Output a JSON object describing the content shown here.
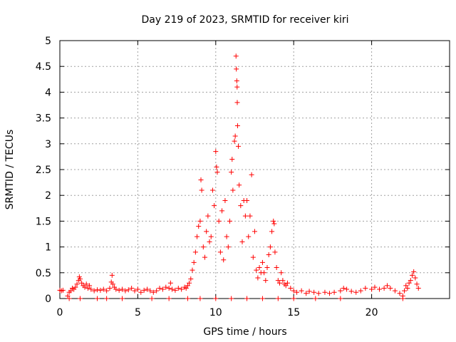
{
  "chart_data": {
    "type": "scatter",
    "title": "Day 219 of 2023, SRMTID for receiver kiri",
    "xlabel": "GPS time / hours",
    "ylabel": "SRMTID / TECUs",
    "xlim": [
      0,
      25
    ],
    "ylim": [
      0,
      5
    ],
    "xticks": [
      0,
      5,
      10,
      15,
      20
    ],
    "yticks": [
      0,
      0.5,
      1,
      1.5,
      2,
      2.5,
      3,
      3.5,
      4,
      4.5,
      5
    ],
    "ytick_labels": [
      "0",
      "0.5",
      "1",
      "1.5",
      "2",
      "2.5",
      "3",
      "3.5",
      "4",
      "4.5",
      "5"
    ],
    "grid": true,
    "legend": null,
    "marker": "+",
    "series_color": "#ff0000",
    "series": [
      {
        "name": "SRMTID",
        "points": [
          [
            0.0,
            0.16
          ],
          [
            0.1,
            0.15
          ],
          [
            0.2,
            0.16
          ],
          [
            0.5,
            0.05
          ],
          [
            0.6,
            0.12
          ],
          [
            0.7,
            0.15
          ],
          [
            0.8,
            0.2
          ],
          [
            0.9,
            0.18
          ],
          [
            1.0,
            0.22
          ],
          [
            1.1,
            0.28
          ],
          [
            1.2,
            0.35
          ],
          [
            1.25,
            0.42
          ],
          [
            1.3,
            0.38
          ],
          [
            1.4,
            0.3
          ],
          [
            1.5,
            0.25
          ],
          [
            1.6,
            0.22
          ],
          [
            1.7,
            0.28
          ],
          [
            1.8,
            0.2
          ],
          [
            1.9,
            0.25
          ],
          [
            2.0,
            0.18
          ],
          [
            2.2,
            0.15
          ],
          [
            2.4,
            0.17
          ],
          [
            2.6,
            0.16
          ],
          [
            2.8,
            0.18
          ],
          [
            3.0,
            0.15
          ],
          [
            3.2,
            0.2
          ],
          [
            3.3,
            0.32
          ],
          [
            3.35,
            0.45
          ],
          [
            3.4,
            0.28
          ],
          [
            3.5,
            0.22
          ],
          [
            3.6,
            0.18
          ],
          [
            3.8,
            0.16
          ],
          [
            4.0,
            0.18
          ],
          [
            4.2,
            0.15
          ],
          [
            4.4,
            0.17
          ],
          [
            4.6,
            0.2
          ],
          [
            4.8,
            0.15
          ],
          [
            5.0,
            0.18
          ],
          [
            5.2,
            0.12
          ],
          [
            5.4,
            0.16
          ],
          [
            5.6,
            0.18
          ],
          [
            5.8,
            0.15
          ],
          [
            6.0,
            0.12
          ],
          [
            6.2,
            0.15
          ],
          [
            6.4,
            0.2
          ],
          [
            6.6,
            0.18
          ],
          [
            6.8,
            0.22
          ],
          [
            7.0,
            0.2
          ],
          [
            7.1,
            0.3
          ],
          [
            7.2,
            0.18
          ],
          [
            7.4,
            0.16
          ],
          [
            7.6,
            0.2
          ],
          [
            7.8,
            0.18
          ],
          [
            8.0,
            0.22
          ],
          [
            8.1,
            0.2
          ],
          [
            8.2,
            0.25
          ],
          [
            8.3,
            0.3
          ],
          [
            8.4,
            0.38
          ],
          [
            8.5,
            0.55
          ],
          [
            8.6,
            0.7
          ],
          [
            8.7,
            0.9
          ],
          [
            8.8,
            1.2
          ],
          [
            8.9,
            1.4
          ],
          [
            9.0,
            1.5
          ],
          [
            9.05,
            2.3
          ],
          [
            9.1,
            2.1
          ],
          [
            9.2,
            1.0
          ],
          [
            9.3,
            0.8
          ],
          [
            9.4,
            1.3
          ],
          [
            9.5,
            1.6
          ],
          [
            9.6,
            1.1
          ],
          [
            9.7,
            1.2
          ],
          [
            9.8,
            2.1
          ],
          [
            9.9,
            1.8
          ],
          [
            10.0,
            2.85
          ],
          [
            10.05,
            2.55
          ],
          [
            10.1,
            2.45
          ],
          [
            10.2,
            1.5
          ],
          [
            10.3,
            0.9
          ],
          [
            10.4,
            1.7
          ],
          [
            10.5,
            0.75
          ],
          [
            10.6,
            1.9
          ],
          [
            10.7,
            1.2
          ],
          [
            10.8,
            1.0
          ],
          [
            10.9,
            1.5
          ],
          [
            11.0,
            2.45
          ],
          [
            11.05,
            2.7
          ],
          [
            11.1,
            2.1
          ],
          [
            11.2,
            3.05
          ],
          [
            11.25,
            3.15
          ],
          [
            11.3,
            4.7
          ],
          [
            11.32,
            4.45
          ],
          [
            11.35,
            4.22
          ],
          [
            11.37,
            4.1
          ],
          [
            11.38,
            3.8
          ],
          [
            11.4,
            3.35
          ],
          [
            11.45,
            2.95
          ],
          [
            11.5,
            2.2
          ],
          [
            11.6,
            1.8
          ],
          [
            11.7,
            1.1
          ],
          [
            11.8,
            1.9
          ],
          [
            11.9,
            1.6
          ],
          [
            12.0,
            1.9
          ],
          [
            12.1,
            1.2
          ],
          [
            12.2,
            1.6
          ],
          [
            12.3,
            2.4
          ],
          [
            12.4,
            0.8
          ],
          [
            12.5,
            1.3
          ],
          [
            12.6,
            0.55
          ],
          [
            12.7,
            0.4
          ],
          [
            12.8,
            0.6
          ],
          [
            12.9,
            0.5
          ],
          [
            13.0,
            0.7
          ],
          [
            13.1,
            0.5
          ],
          [
            13.2,
            0.35
          ],
          [
            13.3,
            0.6
          ],
          [
            13.4,
            0.85
          ],
          [
            13.5,
            1.0
          ],
          [
            13.6,
            1.3
          ],
          [
            13.7,
            1.5
          ],
          [
            13.75,
            1.45
          ],
          [
            13.8,
            0.9
          ],
          [
            13.9,
            0.6
          ],
          [
            14.0,
            0.35
          ],
          [
            14.1,
            0.3
          ],
          [
            14.2,
            0.5
          ],
          [
            14.3,
            0.35
          ],
          [
            14.4,
            0.28
          ],
          [
            14.5,
            0.25
          ],
          [
            14.6,
            0.3
          ],
          [
            14.8,
            0.2
          ],
          [
            15.0,
            0.15
          ],
          [
            15.2,
            0.12
          ],
          [
            15.5,
            0.15
          ],
          [
            15.8,
            0.1
          ],
          [
            16.0,
            0.14
          ],
          [
            16.3,
            0.12
          ],
          [
            16.6,
            0.1
          ],
          [
            17.0,
            0.12
          ],
          [
            17.3,
            0.1
          ],
          [
            17.6,
            0.12
          ],
          [
            18.0,
            0.15
          ],
          [
            18.2,
            0.2
          ],
          [
            18.4,
            0.18
          ],
          [
            18.7,
            0.14
          ],
          [
            19.0,
            0.12
          ],
          [
            19.3,
            0.15
          ],
          [
            19.6,
            0.2
          ],
          [
            20.0,
            0.18
          ],
          [
            20.2,
            0.22
          ],
          [
            20.5,
            0.18
          ],
          [
            20.8,
            0.2
          ],
          [
            21.0,
            0.25
          ],
          [
            21.2,
            0.2
          ],
          [
            21.5,
            0.15
          ],
          [
            21.8,
            0.1
          ],
          [
            22.0,
            0.05
          ],
          [
            22.1,
            0.15
          ],
          [
            22.2,
            0.25
          ],
          [
            22.3,
            0.2
          ],
          [
            22.4,
            0.3
          ],
          [
            22.5,
            0.35
          ],
          [
            22.6,
            0.45
          ],
          [
            22.7,
            0.52
          ],
          [
            22.8,
            0.4
          ],
          [
            22.9,
            0.28
          ],
          [
            23.0,
            0.2
          ],
          [
            0.6,
            0.0
          ],
          [
            1.3,
            0.0
          ],
          [
            2.4,
            0.0
          ],
          [
            3.0,
            0.0
          ],
          [
            4.0,
            0.0
          ],
          [
            5.9,
            0.0
          ],
          [
            7.0,
            0.0
          ],
          [
            8.2,
            0.0
          ],
          [
            9.0,
            0.0
          ],
          [
            10.0,
            0.0
          ],
          [
            11.0,
            0.0
          ],
          [
            12.0,
            0.0
          ],
          [
            13.0,
            0.0
          ],
          [
            14.0,
            0.0
          ],
          [
            15.0,
            0.0
          ],
          [
            16.4,
            0.0
          ],
          [
            18.0,
            0.0
          ],
          [
            22.0,
            0.0
          ]
        ]
      }
    ]
  }
}
